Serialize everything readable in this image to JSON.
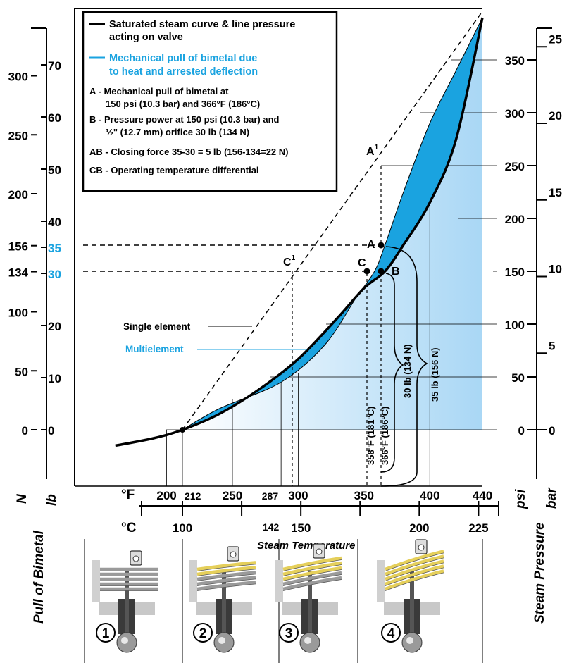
{
  "chart_data": {
    "type": "line",
    "title": "",
    "xlabel": "Steam Temperature",
    "ylabel_left": "Pull of Bimetal",
    "ylabel_right": "Steam Pressure",
    "unit_labels": {
      "N": "N",
      "lb": "lb",
      "psi": "psi",
      "bar": "bar",
      "F": "°F",
      "C": "°C"
    },
    "xlim_F": [
      160,
      445
    ],
    "ylim_psi": [
      0,
      390
    ],
    "x_ticks_F": [
      "200",
      "250",
      "300",
      "350",
      "400",
      "440"
    ],
    "x_ticks_F_minor": [
      "212",
      "287"
    ],
    "x_ticks_C": [
      "100",
      "150",
      "200",
      "225"
    ],
    "x_ticks_C_minor": [
      "142"
    ],
    "psi_ticks": [
      "0",
      "50",
      "100",
      "150",
      "200",
      "250",
      "300",
      "350"
    ],
    "bar_ticks": [
      "0",
      "5",
      "10",
      "15",
      "20",
      "25"
    ],
    "lb_ticks": [
      "0",
      "10",
      "20",
      "30",
      "35",
      "40",
      "50",
      "60",
      "70"
    ],
    "N_ticks": [
      "0",
      "50",
      "100",
      "134",
      "156",
      "200",
      "250",
      "300"
    ],
    "highlight_ticks": [
      "35",
      "30",
      "156",
      "134"
    ],
    "series": [
      {
        "name": "Saturated steam curve & line pressure acting on valve",
        "color": "#000000",
        "x": [
          161,
          190,
          212,
          240,
          270,
          300,
          330,
          350,
          366,
          380,
          400,
          420,
          440
        ],
        "y": [
          -15,
          -8,
          0,
          15,
          38,
          67,
          106,
          134,
          150,
          175,
          215,
          275,
          390
        ]
      },
      {
        "name": "Mechanical pull of bimetal due to heat and arrested deflection",
        "color": "#1aa3e0",
        "x": [
          212,
          240,
          287,
          320,
          344,
          358,
          366,
          380,
          400,
          420,
          440
        ],
        "y": [
          0,
          20,
          45,
          80,
          125,
          150,
          175,
          225,
          290,
          340,
          390
        ]
      }
    ],
    "points": [
      {
        "label": "A",
        "x": 366,
        "y": 175
      },
      {
        "label": "B",
        "x": 366,
        "y": 150
      },
      {
        "label": "C",
        "x": 358,
        "y": 150
      },
      {
        "label": "A1",
        "x": 366,
        "y": 250
      },
      {
        "label": "C1",
        "x": 300,
        "y": 150
      }
    ],
    "annotations": [
      {
        "text": "Single element"
      },
      {
        "text": "Multielement"
      },
      {
        "text": "30 lb (134 N)"
      },
      {
        "text": "35 lb (156 N)"
      },
      {
        "text": "358°F (181°C)"
      },
      {
        "text": "366°F (186°C)"
      }
    ],
    "legend": {
      "placement": "top-left",
      "line1": "Saturated steam curve & line pressure",
      "line1b": "acting on valve",
      "line2": "Mechanical pull of bimetal due",
      "line2b": "to heat and arrested deflection",
      "A1": "A - Mechanical pull of bimetal at",
      "A2": "150 psi (10.3 bar) and 366°F (186°C)",
      "B1": "B - Pressure power at 150 psi (10.3 bar) and",
      "B2": "½\" (12.7 mm) orifice 30 lb (134 N)",
      "AB": "AB - Closing force 35-30 = 5 lb (156-134=22 N)",
      "CB": "CB - Operating temperature differential"
    },
    "stage_labels": [
      "1",
      "2",
      "3",
      "4"
    ]
  }
}
